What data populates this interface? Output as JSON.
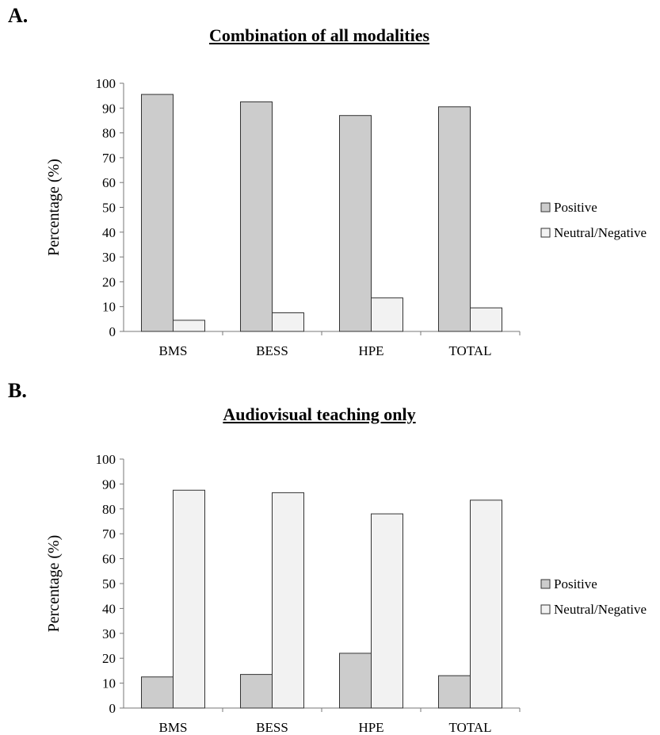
{
  "chart_data": [
    {
      "panel_label": "A.",
      "type": "bar",
      "title": "Combination of all modalities",
      "xlabel": "",
      "ylabel": "Percentage (%)",
      "ylim": [
        0,
        100
      ],
      "yticks": [
        0,
        10,
        20,
        30,
        40,
        50,
        60,
        70,
        80,
        90,
        100
      ],
      "categories": [
        "BMS",
        "BESS",
        "HPE",
        "TOTAL"
      ],
      "series": [
        {
          "name": "Positive",
          "values": [
            95.5,
            92.5,
            87,
            90.5
          ],
          "color": "#cccccc"
        },
        {
          "name": "Neutral/Negative",
          "values": [
            4.5,
            7.5,
            13.5,
            9.5
          ],
          "color": "#f2f2f2"
        }
      ],
      "legend": "right",
      "grid": false
    },
    {
      "panel_label": "B.",
      "type": "bar",
      "title": "Audiovisual teaching only",
      "xlabel": "",
      "ylabel": "Percentage (%)",
      "ylim": [
        0,
        100
      ],
      "yticks": [
        0,
        10,
        20,
        30,
        40,
        50,
        60,
        70,
        80,
        90,
        100
      ],
      "categories": [
        "BMS",
        "BESS",
        "HPE",
        "TOTAL"
      ],
      "series": [
        {
          "name": "Positive",
          "values": [
            12.5,
            13.5,
            22,
            13
          ],
          "color": "#cccccc"
        },
        {
          "name": "Neutral/Negative",
          "values": [
            87.5,
            86.5,
            78,
            83.5
          ],
          "color": "#f2f2f2"
        }
      ],
      "legend": "right",
      "grid": false
    }
  ]
}
